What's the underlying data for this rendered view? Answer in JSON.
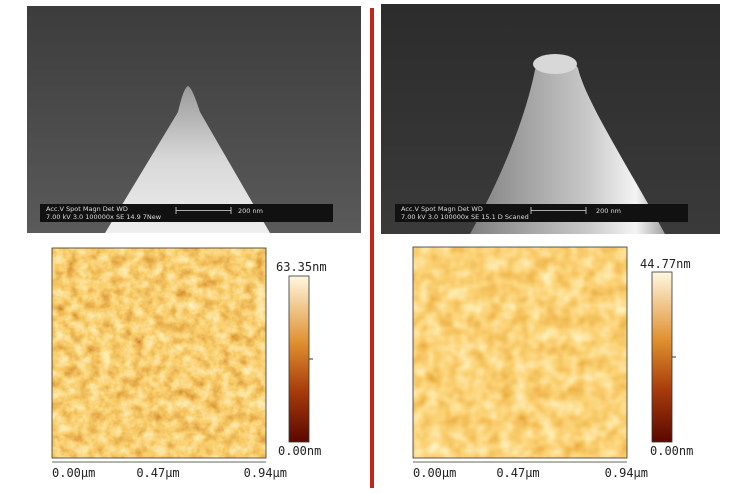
{
  "panels": [
    {
      "sem": {
        "info_header": "Acc.V  Spot Magn   Det  WD",
        "info_values": "7.00 kV 3.0  100000x SE   14.9  7New",
        "scale_label": "200 nm"
      },
      "afm": {
        "colorbar_max": "63.35nm",
        "colorbar_min": "0.00nm",
        "x_labels": [
          "0.00µm",
          "0.47µm",
          "0.94µm"
        ]
      }
    },
    {
      "sem": {
        "info_header": "Acc.V  Spot Magn   Det  WD",
        "info_values": "7.00 kV 3.0  100000x SE   15.1   D Scaned",
        "scale_label": "200 nm"
      },
      "afm": {
        "colorbar_max": "44.77nm",
        "colorbar_min": "0.00nm",
        "x_labels": [
          "0.00µm",
          "0.47µm",
          "0.94µm"
        ]
      }
    }
  ]
}
